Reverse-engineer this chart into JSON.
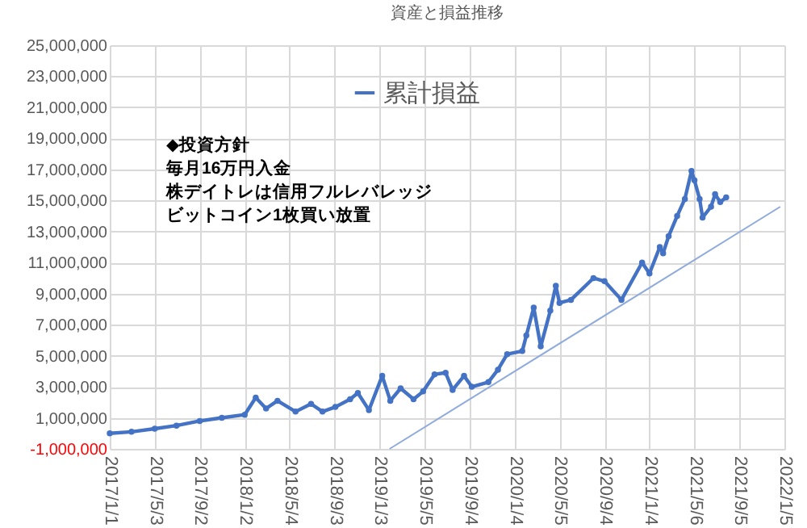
{
  "chart_data": {
    "type": "line",
    "title": "資産と損益推移",
    "annotations": [
      "◆投資方針",
      "毎月16万円入金",
      "株デイトレは信用フルレバレッジ",
      "ビットコイン1枚買い放置"
    ],
    "xlim": [
      "2017-01-01",
      "2022-01-05"
    ],
    "xticks": [
      {
        "value": "2017-01-01",
        "label": "2017/1/1"
      },
      {
        "value": "2017-05-03",
        "label": "2017/5/3"
      },
      {
        "value": "2017-09-02",
        "label": "2017/9/2"
      },
      {
        "value": "2018-01-02",
        "label": "2018/1/2"
      },
      {
        "value": "2018-05-04",
        "label": "2018/5/4"
      },
      {
        "value": "2018-09-03",
        "label": "2018/9/3"
      },
      {
        "value": "2019-01-03",
        "label": "2019/1/3"
      },
      {
        "value": "2019-05-05",
        "label": "2019/5/5"
      },
      {
        "value": "2019-09-04",
        "label": "2019/9/4"
      },
      {
        "value": "2020-01-04",
        "label": "2020/1/4"
      },
      {
        "value": "2020-05-05",
        "label": "2020/5/5"
      },
      {
        "value": "2020-09-04",
        "label": "2020/9/4"
      },
      {
        "value": "2021-01-04",
        "label": "2021/1/4"
      },
      {
        "value": "2021-05-06",
        "label": "2021/5/6"
      },
      {
        "value": "2021-09-05",
        "label": "2021/9/5"
      },
      {
        "value": "2022-01-05",
        "label": "2022/1/5"
      }
    ],
    "ylim": [
      -1000000,
      25000000
    ],
    "yticks": [
      {
        "value": -1000000,
        "label": "-1,000,000"
      },
      {
        "value": 1000000,
        "label": "1,000,000"
      },
      {
        "value": 3000000,
        "label": "3,000,000"
      },
      {
        "value": 5000000,
        "label": "5,000,000"
      },
      {
        "value": 7000000,
        "label": "7,000,000"
      },
      {
        "value": 9000000,
        "label": "9,000,000"
      },
      {
        "value": 11000000,
        "label": "11,000,000"
      },
      {
        "value": 13000000,
        "label": "13,000,000"
      },
      {
        "value": 15000000,
        "label": "15,000,000"
      },
      {
        "value": 17000000,
        "label": "17,000,000"
      },
      {
        "value": 19000000,
        "label": "19,000,000"
      },
      {
        "value": 21000000,
        "label": "21,000,000"
      },
      {
        "value": 23000000,
        "label": "23,000,000"
      },
      {
        "value": 25000000,
        "label": "25,000,000"
      }
    ],
    "grid": true,
    "legend": "top",
    "marker": "circle",
    "line_style": "solid",
    "series": [
      {
        "name": "累計損益",
        "color": "#4472c4",
        "x": [
          "2017-01-01",
          "2017-03-01",
          "2017-05-03",
          "2017-07-01",
          "2017-09-02",
          "2017-11-01",
          "2018-01-02",
          "2018-02-01",
          "2018-03-01",
          "2018-04-01",
          "2018-05-20",
          "2018-07-01",
          "2018-08-01",
          "2018-09-05",
          "2018-10-15",
          "2018-11-05",
          "2018-12-05",
          "2019-01-10",
          "2019-02-01",
          "2019-03-01",
          "2019-04-05",
          "2019-05-01",
          "2019-06-01",
          "2019-07-01",
          "2019-07-20",
          "2019-08-20",
          "2019-09-10",
          "2019-10-25",
          "2019-11-20",
          "2019-12-15",
          "2020-01-25",
          "2020-02-05",
          "2020-02-25",
          "2020-03-15",
          "2020-04-10",
          "2020-04-25",
          "2020-05-05",
          "2020-06-05",
          "2020-08-05",
          "2020-09-04",
          "2020-10-20",
          "2020-12-15",
          "2021-01-04",
          "2021-02-01",
          "2021-02-10",
          "2021-02-25",
          "2021-03-20",
          "2021-04-10",
          "2021-04-28",
          "2021-05-06",
          "2021-05-20",
          "2021-05-28",
          "2021-06-20",
          "2021-07-01",
          "2021-07-15",
          "2021-07-31"
        ],
        "values": [
          0,
          100000,
          300000,
          500000,
          800000,
          1000000,
          1200000,
          2300000,
          1600000,
          2100000,
          1400000,
          1900000,
          1400000,
          1700000,
          2200000,
          2600000,
          1500000,
          3700000,
          2100000,
          2900000,
          2200000,
          2700000,
          3800000,
          3900000,
          2800000,
          3700000,
          3000000,
          3300000,
          4100000,
          5100000,
          5300000,
          6300000,
          8100000,
          5600000,
          7900000,
          9500000,
          8400000,
          8600000,
          10000000,
          9800000,
          8600000,
          11000000,
          10300000,
          12000000,
          11600000,
          12700000,
          14000000,
          15100000,
          16900000,
          16300000,
          15100000,
          13900000,
          14600000,
          15400000,
          14900000,
          15200000
        ]
      },
      {
        "color": "#8faadc",
        "marker": "none",
        "x": [
          "2019-01-30",
          "2021-12-25"
        ],
        "values": [
          -1000000,
          14600000
        ]
      }
    ]
  }
}
